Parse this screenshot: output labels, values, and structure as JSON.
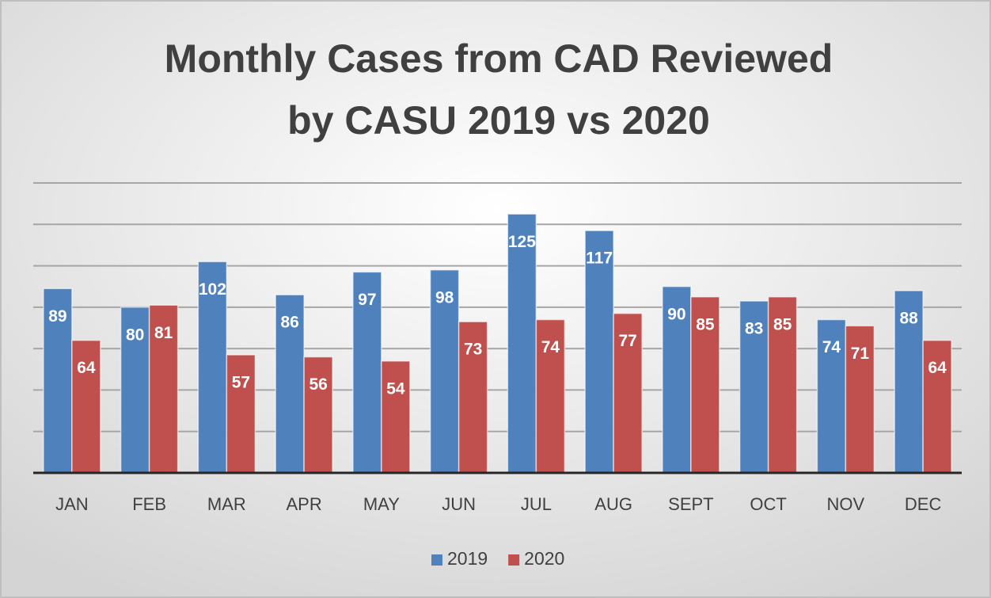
{
  "chart_data": {
    "type": "bar",
    "title": [
      "Monthly Cases from CAD Reviewed",
      "by CASU 2019 vs 2020"
    ],
    "categories": [
      "JAN",
      "FEB",
      "MAR",
      "APR",
      "MAY",
      "JUN",
      "JUL",
      "AUG",
      "SEPT",
      "OCT",
      "NOV",
      "DEC"
    ],
    "series": [
      {
        "name": "2019",
        "color": "#4f81bd",
        "values": [
          89,
          80,
          102,
          86,
          97,
          98,
          125,
          117,
          90,
          83,
          74,
          88
        ]
      },
      {
        "name": "2020",
        "color": "#c0504d",
        "values": [
          64,
          81,
          57,
          56,
          54,
          73,
          74,
          77,
          85,
          85,
          71,
          64
        ]
      }
    ],
    "ylim": [
      0,
      140
    ],
    "yticks": [
      0,
      20,
      40,
      60,
      80,
      100,
      120,
      140
    ],
    "grid": true,
    "legend": "bottom"
  }
}
